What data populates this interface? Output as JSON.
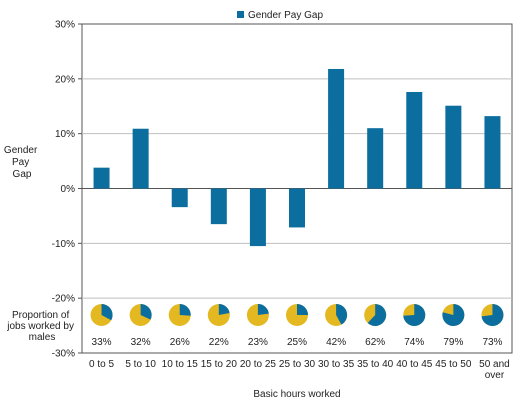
{
  "chart_data": {
    "type": "bar",
    "ylabel": "Gender Pay Gap",
    "xlabel": "Basic hours worked",
    "legend": {
      "label": "Gender Pay Gap",
      "placement": "top-center"
    },
    "ylim": [
      -30,
      30
    ],
    "y_ticks": [
      "30%",
      "20%",
      "10%",
      "0%",
      "-10%",
      "-20%",
      "-30%"
    ],
    "y_tick_values": [
      30,
      20,
      10,
      0,
      -10,
      -20,
      -30
    ],
    "categories": [
      "0 to 5",
      "5 to 10",
      "10 to 15",
      "15 to 20",
      "20 to 25",
      "25 to 30",
      "30 to 35",
      "35 to 40",
      "40 to 45",
      "45 to 50",
      "50 and over"
    ],
    "values": [
      3.8,
      10.9,
      -3.4,
      -6.5,
      -10.5,
      -7.1,
      21.8,
      11.0,
      17.6,
      15.1,
      13.2
    ],
    "male_share_label": "Proportion of jobs worked by males",
    "male_share_pct": [
      33,
      32,
      26,
      22,
      23,
      25,
      42,
      62,
      74,
      79,
      73
    ],
    "male_share_labels": [
      "33%",
      "32%",
      "26%",
      "22%",
      "23%",
      "25%",
      "42%",
      "62%",
      "74%",
      "79%",
      "73%"
    ],
    "colors": {
      "bar": "#0b6e9f",
      "male": "#0b6e9f",
      "female": "#e3b821",
      "axis": "#555555",
      "grid": "#bfbfbf"
    }
  }
}
